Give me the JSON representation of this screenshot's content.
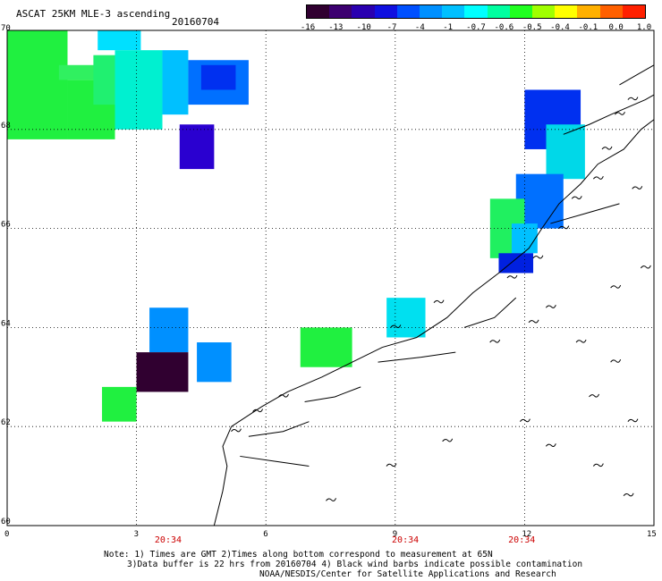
{
  "title": "ASCAT 25KM MLE-3 ascending",
  "date": "20160704",
  "colorbar": {
    "tick_labels": [
      "-16",
      "-13",
      "-10",
      "-7",
      "-4",
      "-1",
      "-0.7",
      "-0.6",
      "-0.5",
      "-0.4",
      "-0.1",
      "0.0",
      "1.0"
    ],
    "colors": [
      "#300030",
      "#3c0070",
      "#2a00b0",
      "#1010e0",
      "#0050ff",
      "#0090ff",
      "#00c0ff",
      "#00ffff",
      "#00ffa0",
      "#20ff20",
      "#a0ff00",
      "#ffff00",
      "#ffb000",
      "#ff6000",
      "#ff2000"
    ]
  },
  "map": {
    "lat_labels": [
      "70",
      "68",
      "66",
      "64",
      "62",
      "60"
    ],
    "lon_labels": [
      "0",
      "3",
      "6",
      "9",
      "12",
      "15"
    ],
    "time_labels": [
      {
        "lon": 3.9,
        "text": "20:34"
      },
      {
        "lon": 9.4,
        "text": "20:34"
      },
      {
        "lon": 12.1,
        "text": "20:34"
      }
    ],
    "cells": [
      {
        "lon0": 0.0,
        "lon1": 1.4,
        "lat0": 67.8,
        "lat1": 70.0,
        "color": "#20f040"
      },
      {
        "lon0": 1.4,
        "lon1": 2.5,
        "lat0": 67.8,
        "lat1": 69.0,
        "color": "#20f040"
      },
      {
        "lon0": 1.2,
        "lon1": 2.2,
        "lat0": 69.0,
        "lat1": 69.3,
        "color": "#30f060"
      },
      {
        "lon0": 2.0,
        "lon1": 3.0,
        "lat0": 68.5,
        "lat1": 69.5,
        "color": "#20f070"
      },
      {
        "lon0": 2.1,
        "lon1": 3.1,
        "lat0": 69.6,
        "lat1": 70.0,
        "color": "#00e0ff"
      },
      {
        "lon0": 2.5,
        "lon1": 3.6,
        "lat0": 68.0,
        "lat1": 69.6,
        "color": "#00f0d0"
      },
      {
        "lon0": 3.6,
        "lon1": 4.2,
        "lat0": 68.3,
        "lat1": 69.6,
        "color": "#00c0ff"
      },
      {
        "lon0": 4.2,
        "lon1": 5.6,
        "lat0": 68.5,
        "lat1": 69.4,
        "color": "#0070ff"
      },
      {
        "lon0": 4.5,
        "lon1": 5.3,
        "lat0": 68.8,
        "lat1": 69.3,
        "color": "#0030f0"
      },
      {
        "lon0": 4.0,
        "lon1": 4.8,
        "lat0": 67.2,
        "lat1": 68.1,
        "color": "#2a00d0"
      },
      {
        "lon0": 12.0,
        "lon1": 13.3,
        "lat0": 67.6,
        "lat1": 68.8,
        "color": "#0030f0"
      },
      {
        "lon0": 12.5,
        "lon1": 13.4,
        "lat0": 67.0,
        "lat1": 68.1,
        "color": "#00d8e8"
      },
      {
        "lon0": 11.8,
        "lon1": 12.9,
        "lat0": 66.0,
        "lat1": 67.1,
        "color": "#0070ff"
      },
      {
        "lon0": 11.2,
        "lon1": 12.0,
        "lat0": 65.4,
        "lat1": 66.6,
        "color": "#20f060"
      },
      {
        "lon0": 11.7,
        "lon1": 12.3,
        "lat0": 65.5,
        "lat1": 66.1,
        "color": "#00c0ff"
      },
      {
        "lon0": 11.4,
        "lon1": 12.2,
        "lat0": 65.1,
        "lat1": 65.5,
        "color": "#0020e0"
      },
      {
        "lon0": 8.8,
        "lon1": 9.7,
        "lat0": 63.8,
        "lat1": 64.6,
        "color": "#00e0f0"
      },
      {
        "lon0": 6.8,
        "lon1": 8.0,
        "lat0": 63.2,
        "lat1": 64.0,
        "color": "#20f040"
      },
      {
        "lon0": 3.3,
        "lon1": 4.2,
        "lat0": 63.5,
        "lat1": 64.4,
        "color": "#0090ff"
      },
      {
        "lon0": 3.0,
        "lon1": 4.2,
        "lat0": 62.7,
        "lat1": 63.5,
        "color": "#300030"
      },
      {
        "lon0": 4.4,
        "lon1": 5.2,
        "lat0": 62.9,
        "lat1": 63.7,
        "color": "#0090ff"
      },
      {
        "lon0": 2.2,
        "lon1": 3.0,
        "lat0": 62.1,
        "lat1": 62.8,
        "color": "#20f040"
      }
    ],
    "coastlines": [
      [
        [
          4.8,
          60.0
        ],
        [
          5.0,
          60.7
        ],
        [
          5.1,
          61.2
        ],
        [
          5.0,
          61.6
        ],
        [
          5.2,
          62.0
        ],
        [
          5.9,
          62.4
        ],
        [
          6.5,
          62.7
        ],
        [
          7.3,
          63.0
        ],
        [
          8.0,
          63.3
        ],
        [
          8.7,
          63.6
        ],
        [
          9.5,
          63.8
        ],
        [
          10.2,
          64.2
        ],
        [
          10.8,
          64.7
        ],
        [
          11.4,
          65.1
        ],
        [
          12.1,
          65.6
        ],
        [
          12.4,
          66.0
        ],
        [
          12.8,
          66.5
        ],
        [
          13.3,
          66.9
        ],
        [
          13.7,
          67.3
        ],
        [
          14.3,
          67.6
        ],
        [
          14.7,
          68.0
        ],
        [
          15.0,
          68.2
        ]
      ],
      [
        [
          12.9,
          67.9
        ],
        [
          13.5,
          68.1
        ],
        [
          14.0,
          68.3
        ],
        [
          14.8,
          68.6
        ],
        [
          15.0,
          68.7
        ]
      ],
      [
        [
          14.2,
          68.9
        ],
        [
          14.6,
          69.1
        ],
        [
          15.0,
          69.3
        ]
      ],
      [
        [
          5.4,
          61.4
        ],
        [
          6.2,
          61.3
        ],
        [
          7.0,
          61.2
        ]
      ],
      [
        [
          5.6,
          61.8
        ],
        [
          6.4,
          61.9
        ],
        [
          7.0,
          62.1
        ]
      ],
      [
        [
          6.9,
          62.5
        ],
        [
          7.6,
          62.6
        ],
        [
          8.2,
          62.8
        ]
      ],
      [
        [
          8.6,
          63.3
        ],
        [
          9.6,
          63.4
        ],
        [
          10.4,
          63.5
        ]
      ],
      [
        [
          10.6,
          64.0
        ],
        [
          11.3,
          64.2
        ],
        [
          11.8,
          64.6
        ]
      ],
      [
        [
          12.6,
          66.1
        ],
        [
          13.4,
          66.3
        ],
        [
          14.2,
          66.5
        ]
      ]
    ],
    "islands": [
      [
        11.7,
        65.0
      ],
      [
        12.3,
        65.4
      ],
      [
        12.9,
        66.0
      ],
      [
        13.2,
        66.6
      ],
      [
        13.7,
        67.0
      ],
      [
        13.9,
        67.6
      ],
      [
        14.2,
        68.3
      ],
      [
        14.5,
        68.6
      ],
      [
        9.0,
        64.0
      ],
      [
        10.0,
        64.5
      ],
      [
        6.4,
        62.6
      ],
      [
        5.8,
        62.3
      ],
      [
        5.3,
        61.9
      ],
      [
        11.3,
        63.7
      ],
      [
        12.6,
        64.4
      ],
      [
        13.3,
        63.7
      ],
      [
        14.1,
        63.3
      ],
      [
        13.6,
        62.6
      ],
      [
        14.5,
        62.1
      ],
      [
        12.6,
        61.6
      ],
      [
        13.7,
        61.2
      ],
      [
        14.4,
        60.6
      ],
      [
        12.0,
        62.1
      ],
      [
        10.2,
        61.7
      ],
      [
        8.9,
        61.2
      ],
      [
        7.5,
        60.5
      ],
      [
        14.8,
        65.2
      ],
      [
        14.1,
        64.8
      ],
      [
        12.2,
        64.1
      ],
      [
        14.6,
        66.8
      ]
    ]
  },
  "notes": {
    "line1": "Note: 1) Times are GMT 2)Times along bottom correspond to measurement at 65N",
    "line2": "3)Data buffer is 22 hrs from 20160704 4) Black wind barbs indicate possible contamination",
    "line3": "NOAA/NESDIS/Center for Satellite Applications and Research"
  }
}
